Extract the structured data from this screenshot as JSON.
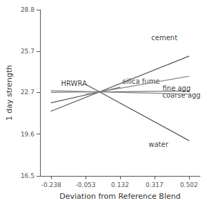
{
  "chart_data": {
    "type": "line",
    "xlabel": "Deviation from Reference Blend",
    "ylabel": "1 day strength",
    "xlim": [
      -0.298,
      0.562
    ],
    "ylim": [
      16.5,
      28.8
    ],
    "xticks": [
      -0.238,
      -0.053,
      0.132,
      0.317,
      0.502
    ],
    "yticks": [
      16.5,
      19.6,
      22.7,
      25.7,
      28.8
    ],
    "grid": false,
    "series": [
      {
        "color": "#555555",
        "x": [
          -0.238,
          0.502
        ],
        "values": [
          21.29,
          25.36
        ]
      },
      {
        "color": "#555555",
        "x": [
          -0.238,
          0.132
        ],
        "values": [
          21.914,
          23.061
        ]
      },
      {
        "color": "#888888",
        "x": [
          -0.053,
          0.502
        ],
        "values": [
          22.54,
          23.872
        ]
      },
      {
        "color": "#555555",
        "x": [
          -0.238,
          0.502
        ],
        "values": [
          22.6888,
          22.7776
        ]
      },
      {
        "color": "#888888",
        "x": [
          -0.238,
          0.502
        ],
        "values": [
          22.811,
          22.552
        ]
      },
      {
        "color": "#555555",
        "x": [
          -0.053,
          0.502
        ],
        "values": [
          23.2825,
          19.12
        ]
      }
    ],
    "annotations": [
      {
        "text": "cement",
        "x": 0.3,
        "y": 26.7
      },
      {
        "text": "HRWRA",
        "x": -0.185,
        "y": 23.35
      },
      {
        "text": "silica fume",
        "x": 0.145,
        "y": 23.52
      },
      {
        "text": "fine agg",
        "x": 0.36,
        "y": 22.97
      },
      {
        "text": "coarse agg",
        "x": 0.36,
        "y": 22.48
      },
      {
        "text": "water",
        "x": 0.285,
        "y": 18.85
      }
    ]
  }
}
